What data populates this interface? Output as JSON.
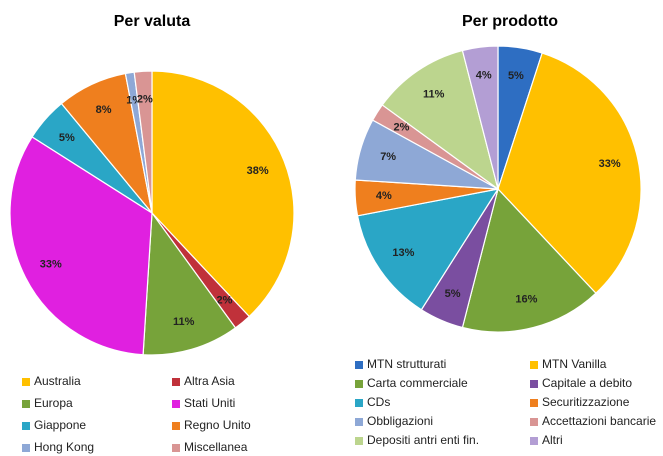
{
  "chart_data": [
    {
      "type": "pie",
      "title": "Per valuta",
      "categories": [
        "Australia",
        "Altra Asia",
        "Europa",
        "Stati Uniti",
        "Giappone",
        "Regno Unito",
        "Hong Kong",
        "Miscellanea"
      ],
      "values": [
        38,
        2,
        11,
        33,
        5,
        8,
        1,
        2
      ],
      "value_labels": [
        "38%",
        "2%",
        "11%",
        "33%",
        "5%",
        "8%",
        "1%",
        "2%"
      ],
      "colors": [
        "#ffc000",
        "#c0313a",
        "#77a33a",
        "#e020e0",
        "#2aa6c6",
        "#ef7f1e",
        "#8ea8d6",
        "#d99594"
      ]
    },
    {
      "type": "pie",
      "title": "Per prodotto",
      "categories": [
        "MTN strutturati",
        "MTN Vanilla",
        "Carta commerciale",
        "Capitale a debito",
        "CDs",
        "Securitizzazione",
        "Obbligazioni",
        "Accettazioni bancarie",
        "Depositi antri enti fin.",
        "Altri"
      ],
      "values": [
        5,
        33,
        16,
        5,
        13,
        4,
        7,
        2,
        11,
        4
      ],
      "value_labels": [
        "5%",
        "33%",
        "16%",
        "5%",
        "13%",
        "4%",
        "7%",
        "2%",
        "11%",
        "4%"
      ],
      "colors": [
        "#2e6ec2",
        "#ffc000",
        "#77a33a",
        "#7a4ea0",
        "#2aa6c6",
        "#ef7f1e",
        "#8ea8d6",
        "#d99594",
        "#bcd58e",
        "#b39ed4"
      ]
    }
  ]
}
